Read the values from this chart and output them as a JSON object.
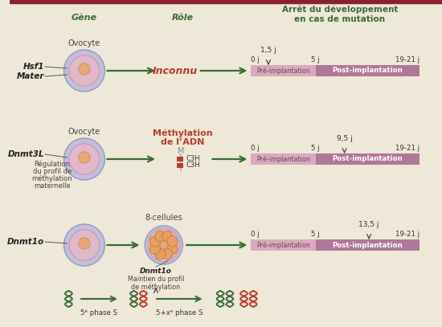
{
  "bg_color": "#ede8d8",
  "border_color": "#8B2030",
  "dark_green": "#3a6b35",
  "red_color": "#c0392b",
  "pink_light": "#dda8be",
  "purple_dark": "#b07898",
  "header_title": "Arrêt du développement\nen cas de mutation",
  "header_gene": "Gène",
  "header_role": "Rôle",
  "row1_gene_1": "Hsf1",
  "row1_gene_2": "Mater",
  "row1_label": "Ovocyte",
  "row1_role": "Inconnu",
  "row1_arrow_time": "1,5 j",
  "row2_gene": "Dnmt3L",
  "row2_sub1": "Régulation",
  "row2_sub2": "du profil de",
  "row2_sub3": "méthylation",
  "row2_sub4": "maternelle",
  "row2_label": "Ovocyte",
  "row2_role_1": "Méthylation",
  "row2_role_2": "de l’ADN",
  "row2_methyl_m": "M",
  "row2_c3h_1": "C3H",
  "row2_c3h_2": "C3H",
  "row2_arrow_time": "9,5 j",
  "row3_gene": "Dnmt1o",
  "row3_label": "8-cellules",
  "row3_dnmt_label": "Dnmt1o",
  "row3_sub1": "Maintien du profil",
  "row3_sub2": "de méthylation",
  "row3_arrow_time": "13,5 j",
  "pre_impl": "Pré-implantation",
  "post_impl": "Post-implantation",
  "time_0": "0 j",
  "time_5": "5 j",
  "time_19_21": "19-21 j",
  "phase5": "5ᵉ phase S",
  "phase5x": "5+xᵉ phase S",
  "ovo_outer_fc": "#c0c0dc",
  "ovo_outer_ec": "#9898c0",
  "ovo_inner_fc": "#e0b8c8",
  "ovo_inner_ec": "#c898b0",
  "ovo_nuc_fc": "#e8a878",
  "ovo_nuc_ec": "#d09060",
  "cell8_fc": "#e8a060",
  "cell8_ec": "#c07840"
}
